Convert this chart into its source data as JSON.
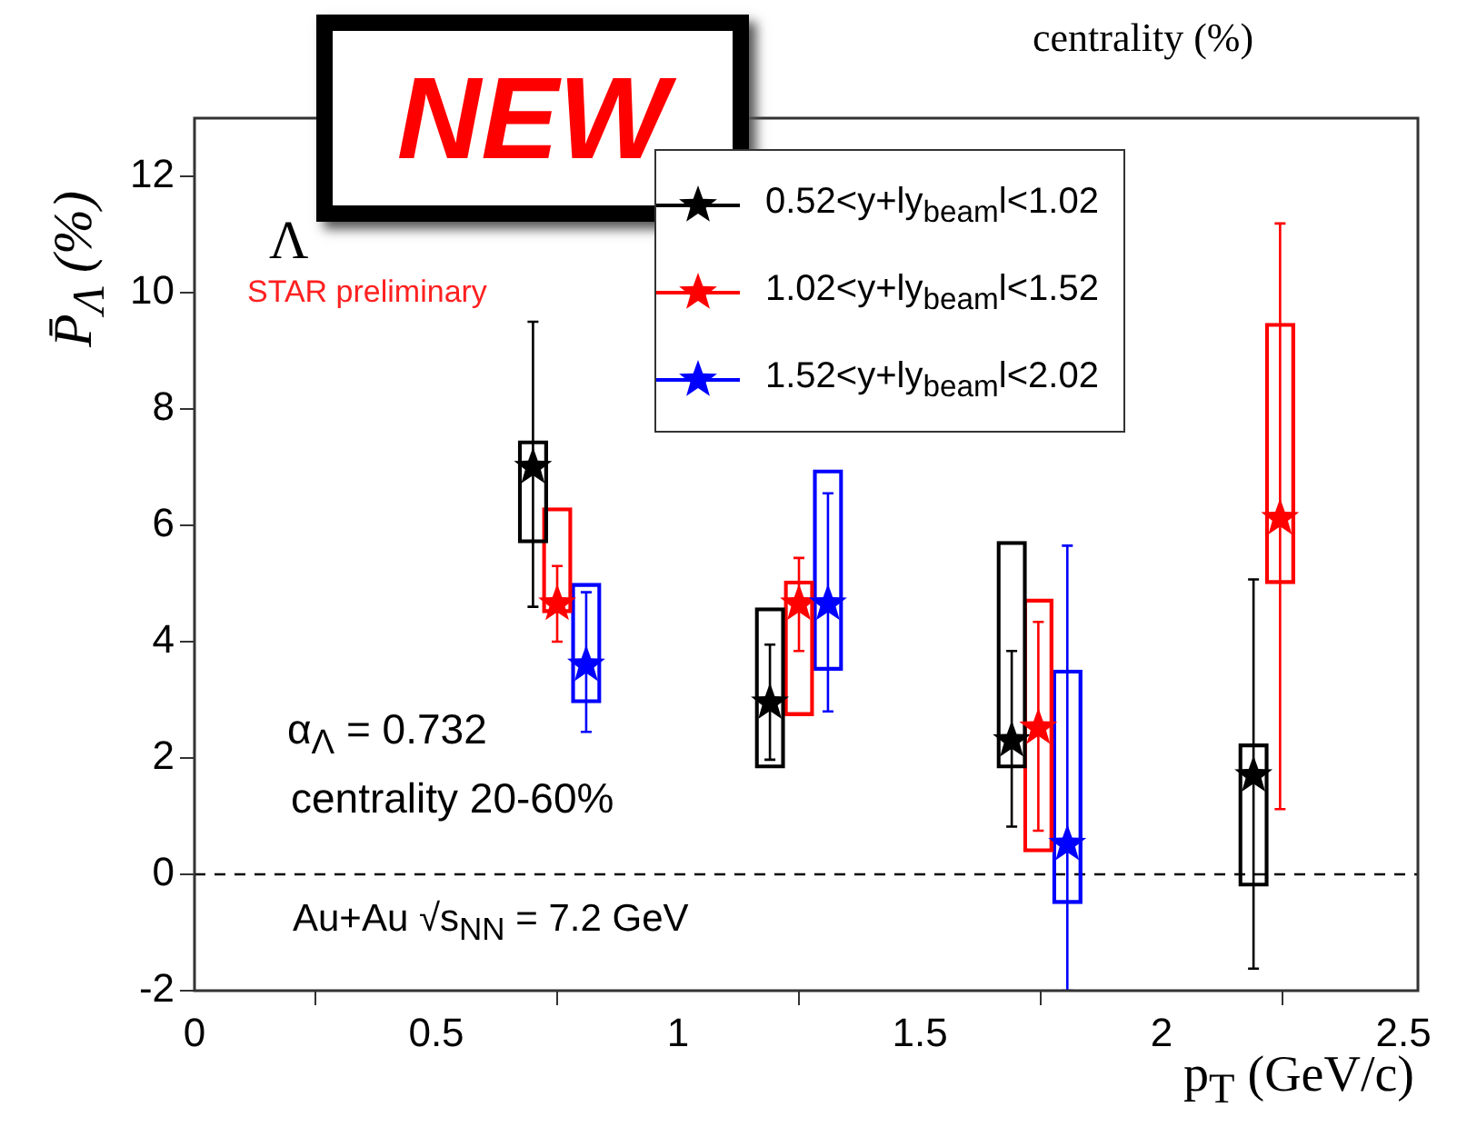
{
  "chart_data": {
    "type": "scatter",
    "xlabel": "p$_{T}$ (GeV/c)",
    "ylabel": "P̄$_{Λ}$ (%)",
    "xlim": [
      0,
      2.53
    ],
    "ylim": [
      -2,
      13
    ],
    "xticks": [
      0,
      0.5,
      1,
      1.5,
      2,
      2.5
    ],
    "yticks": [
      -2,
      0,
      2,
      4,
      6,
      8,
      10,
      12
    ],
    "grid": false,
    "legend": "top right",
    "marker": "star",
    "ref_lines": [
      {
        "axis": "y",
        "value": 0,
        "color": "#000000",
        "line_style": "dashed"
      }
    ],
    "annotations": [
      "NEW",
      "centrality (%)",
      "Λ",
      "STAR preliminary",
      "α$_{Λ}$ = 0.732",
      "centrality 20-60%",
      "Au+Au √s$_{NN}$ = 7.2 GeV"
    ],
    "series": [
      {
        "name": "0.52<y+ly$_{beam}$l<1.02",
        "color": "#000000",
        "x": [
          0.7,
          1.19,
          1.69,
          2.19
        ],
        "values": [
          7.0,
          2.95,
          2.3,
          1.7
        ],
        "errors": [
          [
            4.6,
            9.5
          ],
          [
            1.97,
            3.95
          ],
          [
            0.82,
            3.84
          ],
          [
            -1.62,
            5.07
          ]
        ]
      },
      {
        "name": "1.02<y+ly$_{beam}$l<1.52",
        "color": "#ff0000",
        "x": [
          0.75,
          1.25,
          1.745,
          2.245
        ],
        "values": [
          4.65,
          4.65,
          2.52,
          6.12
        ],
        "errors": [
          [
            4.0,
            5.3
          ],
          [
            3.84,
            5.44
          ],
          [
            0.75,
            4.34
          ],
          [
            1.12,
            11.19
          ]
        ]
      },
      {
        "name": "1.52<y+ly$_{beam}$l<2.02",
        "color": "#0000ff",
        "x": [
          0.81,
          1.31,
          1.805
        ],
        "values": [
          3.6,
          4.65,
          0.52
        ],
        "errors": [
          [
            2.45,
            4.85
          ],
          [
            2.8,
            6.55
          ],
          [
            -2.0,
            5.65
          ]
        ]
      },
      {
        "type": "bar",
        "color": "#000000",
        "x": [
          0.7,
          1.19,
          1.69,
          2.19
        ],
        "base": [
          5.7,
          1.83,
          1.83,
          -0.2
        ],
        "values": [
          1.75,
          2.75,
          3.89,
          2.44
        ]
      },
      {
        "type": "bar",
        "color": "#ff0000",
        "x": [
          0.75,
          1.25,
          1.745,
          2.245
        ],
        "base": [
          4.5,
          2.73,
          0.39,
          5.0
        ],
        "values": [
          1.8,
          2.31,
          4.34,
          4.47
        ]
      },
      {
        "type": "bar",
        "color": "#0000ff",
        "x": [
          0.81,
          1.31,
          1.805
        ],
        "base": [
          2.95,
          3.51,
          -0.5
        ],
        "values": [
          2.05,
          3.44,
          4.01
        ]
      }
    ]
  }
}
